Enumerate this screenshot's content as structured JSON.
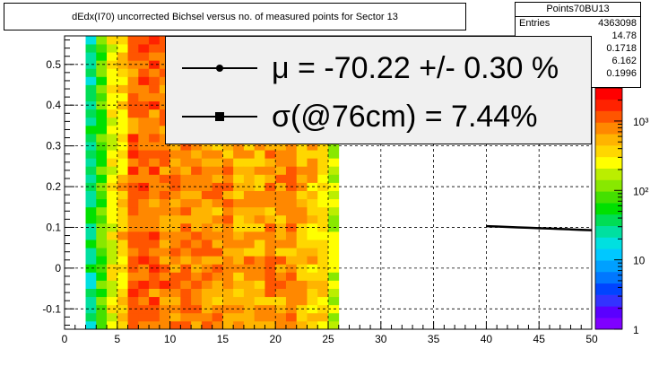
{
  "chart_data": {
    "type": "heatmap",
    "title": "dEdx(I70) uncorrected Bichsel versus no. of measured points for Sector 13",
    "xlabel": "",
    "ylabel": "",
    "xlim": [
      0,
      50
    ],
    "ylim": [
      -0.15,
      0.57
    ],
    "x_ticks": [
      "0",
      "5",
      "10",
      "15",
      "20",
      "25",
      "30",
      "35",
      "40",
      "45",
      "50"
    ],
    "y_ticks": [
      "-0.1",
      "0",
      "0.1",
      "0.2",
      "0.3",
      "0.4",
      "0.5"
    ],
    "grid": true,
    "z_scale": "log",
    "z_range": [
      1,
      3000
    ],
    "z_ticks": [
      "1",
      "10",
      "10²",
      "10³"
    ],
    "bin_width": 1,
    "columns": [
      {
        "x": 2,
        "level": 0.42
      },
      {
        "x": 3,
        "level": 0.55
      },
      {
        "x": 4,
        "level": 0.7
      },
      {
        "x": 5,
        "level": 0.76
      },
      {
        "x": 6,
        "level": 0.88
      },
      {
        "x": 7,
        "level": 0.9
      },
      {
        "x": 8,
        "level": 0.88
      },
      {
        "x": 9,
        "level": 0.86
      },
      {
        "x": 10,
        "level": 0.85
      },
      {
        "x": 11,
        "level": 0.86
      },
      {
        "x": 12,
        "level": 0.84
      },
      {
        "x": 13,
        "level": 0.85
      },
      {
        "x": 14,
        "level": 0.83
      },
      {
        "x": 15,
        "level": 0.82
      },
      {
        "x": 16,
        "level": 0.8
      },
      {
        "x": 17,
        "level": 0.82
      },
      {
        "x": 18,
        "level": 0.8
      },
      {
        "x": 19,
        "level": 0.84
      },
      {
        "x": 20,
        "level": 0.82
      },
      {
        "x": 21,
        "level": 0.84
      },
      {
        "x": 22,
        "level": 0.8
      },
      {
        "x": 23,
        "level": 0.78
      },
      {
        "x": 24,
        "level": 0.74
      },
      {
        "x": 25,
        "level": 0.66
      }
    ],
    "series": [
      {
        "type": "line",
        "x": [
          40,
          41,
          42,
          43,
          44,
          45,
          46,
          47,
          48,
          49,
          50
        ],
        "y": [
          0.103,
          0.102,
          0.101,
          0.1,
          0.099,
          0.098,
          0.097,
          0.096,
          0.095,
          0.094,
          0.093
        ]
      }
    ],
    "stats": {
      "name": "Points70BU13",
      "entries_label": "Entries",
      "entries_value": "4363098",
      "extra_values": [
        "14.78",
        "0.1718",
        "6.162",
        "0.1996"
      ]
    },
    "legend": [
      {
        "marker": "circle",
        "text": "μ  = -70.22 +/-  0.30 %"
      },
      {
        "marker": "square",
        "text": "σ(@76cm) =  7.44%"
      }
    ]
  }
}
